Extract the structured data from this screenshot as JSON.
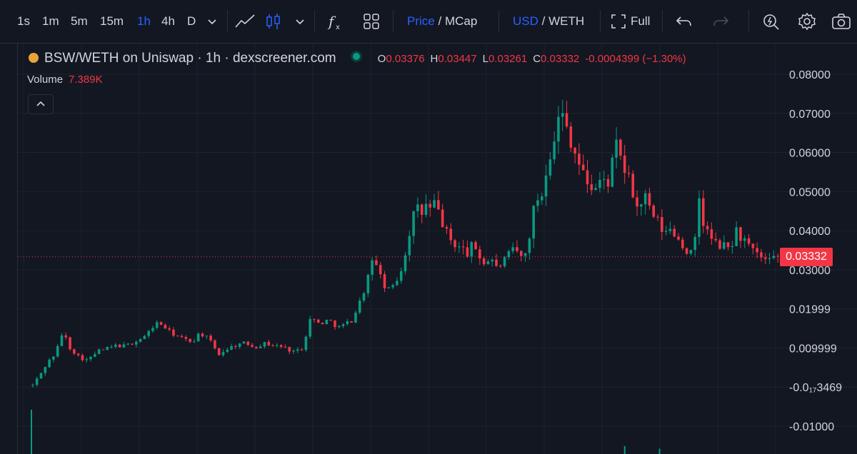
{
  "toolbar": {
    "intervals": [
      "1s",
      "1m",
      "5m",
      "15m",
      "1h",
      "4h",
      "D"
    ],
    "active_interval": "1h",
    "price_label": "Price",
    "price_sep": "/",
    "mcap_label": "MCap",
    "usd_label": "USD",
    "currency_sep": "/",
    "weth_label": "WETH",
    "full_label": "Full",
    "icons": [
      "chevron-down-icon",
      "line-chart-icon",
      "candlestick-icon",
      "chevron-down-icon",
      "function-icon",
      "layout-grid-icon",
      "fullscreen-icon",
      "undo-icon",
      "redo-icon",
      "alert-icon",
      "gear-icon",
      "camera-icon"
    ]
  },
  "legend": {
    "title": "BSW/WETH on Uniswap · 1h · dexscreener.com",
    "open_key": "O",
    "open": "0.03376",
    "high_key": "H",
    "high": "0.03447",
    "low_key": "L",
    "low": "0.03261",
    "close_key": "C",
    "close": "0.03332",
    "change": "-0.0004399 (−1.30%)"
  },
  "volume": {
    "label": "Volume",
    "value": "7.389K"
  },
  "price_tag": "0.03332",
  "colors": {
    "up": "#089981",
    "down": "#f23645",
    "background": "#131722",
    "grid": "#1e222d",
    "accent": "#2962ff"
  },
  "chart_data": {
    "type": "candlestick",
    "title": "BSW/WETH on Uniswap · 1h · dexscreener.com",
    "y_axis_labels": [
      "0.08000",
      "0.07000",
      "0.06000",
      "0.05000",
      "0.04000",
      "0.03000",
      "0.01999",
      "0.009999",
      "-0.0₁₇3469",
      "-0.01000"
    ],
    "y_axis_values": [
      0.08,
      0.07,
      0.06,
      0.05,
      0.04,
      0.03,
      0.02,
      0.01,
      0.0,
      -0.01
    ],
    "ylim": [
      -0.012,
      0.0826
    ],
    "last_price": 0.03332,
    "grid": true,
    "close_path": [
      [
        0,
        0.0005
      ],
      [
        3,
        0.003
      ],
      [
        6,
        0.006
      ],
      [
        10,
        0.0088
      ],
      [
        13,
        0.0143
      ],
      [
        16,
        0.0101
      ],
      [
        20,
        0.0077
      ],
      [
        24,
        0.0068
      ],
      [
        28,
        0.0092
      ],
      [
        32,
        0.0098
      ],
      [
        36,
        0.0106
      ],
      [
        40,
        0.0105
      ],
      [
        45,
        0.0118
      ],
      [
        49,
        0.0132
      ],
      [
        53,
        0.0164
      ],
      [
        56,
        0.0159
      ],
      [
        59,
        0.0142
      ],
      [
        62,
        0.0131
      ],
      [
        66,
        0.0121
      ],
      [
        69,
        0.0115
      ],
      [
        72,
        0.0138
      ],
      [
        75,
        0.0128
      ],
      [
        78,
        0.0108
      ],
      [
        80,
        0.0082
      ],
      [
        84,
        0.0098
      ],
      [
        88,
        0.0108
      ],
      [
        92,
        0.0113
      ],
      [
        96,
        0.0102
      ],
      [
        100,
        0.0112
      ],
      [
        104,
        0.0107
      ],
      [
        108,
        0.0103
      ],
      [
        112,
        0.0092
      ],
      [
        116,
        0.0094
      ],
      [
        118,
        0.0132
      ],
      [
        120,
        0.0176
      ],
      [
        124,
        0.0162
      ],
      [
        128,
        0.0172
      ],
      [
        132,
        0.0152
      ],
      [
        135,
        0.0161
      ],
      [
        138,
        0.0172
      ],
      [
        141,
        0.0212
      ],
      [
        144,
        0.0262
      ],
      [
        146,
        0.0308
      ],
      [
        148,
        0.0332
      ],
      [
        151,
        0.0262
      ],
      [
        154,
        0.0246
      ],
      [
        157,
        0.0272
      ],
      [
        160,
        0.0312
      ],
      [
        162,
        0.0375
      ],
      [
        164,
        0.0432
      ],
      [
        166,
        0.0458
      ],
      [
        168,
        0.0442
      ],
      [
        170,
        0.0465
      ],
      [
        172,
        0.0452
      ],
      [
        174,
        0.0472
      ],
      [
        176,
        0.0438
      ],
      [
        178,
        0.0405
      ],
      [
        180,
        0.0378
      ],
      [
        182,
        0.0368
      ],
      [
        184,
        0.0358
      ],
      [
        186,
        0.0352
      ],
      [
        188,
        0.0342
      ],
      [
        190,
        0.0362
      ],
      [
        192,
        0.0352
      ],
      [
        194,
        0.0322
      ],
      [
        196,
        0.0314
      ],
      [
        198,
        0.0338
      ],
      [
        200,
        0.0302
      ],
      [
        203,
        0.0318
      ],
      [
        206,
        0.0338
      ],
      [
        208,
        0.0352
      ],
      [
        210,
        0.0342
      ],
      [
        212,
        0.0322
      ],
      [
        214,
        0.0365
      ],
      [
        216,
        0.0442
      ],
      [
        218,
        0.0482
      ],
      [
        220,
        0.0492
      ],
      [
        222,
        0.0562
      ],
      [
        224,
        0.0612
      ],
      [
        226,
        0.0655
      ],
      [
        228,
        0.0705
      ],
      [
        230,
        0.0682
      ],
      [
        232,
        0.0642
      ],
      [
        234,
        0.0608
      ],
      [
        236,
        0.0572
      ],
      [
        238,
        0.0542
      ],
      [
        240,
        0.0522
      ],
      [
        242,
        0.0508
      ],
      [
        244,
        0.0512
      ],
      [
        246,
        0.0535
      ],
      [
        248,
        0.0512
      ],
      [
        250,
        0.0558
      ],
      [
        252,
        0.0618
      ],
      [
        254,
        0.0585
      ],
      [
        256,
        0.0552
      ],
      [
        258,
        0.0522
      ],
      [
        260,
        0.0482
      ],
      [
        262,
        0.0442
      ],
      [
        264,
        0.0502
      ],
      [
        266,
        0.0458
      ],
      [
        268,
        0.0438
      ],
      [
        270,
        0.0422
      ],
      [
        272,
        0.0402
      ],
      [
        274,
        0.0392
      ],
      [
        276,
        0.0408
      ],
      [
        278,
        0.0385
      ],
      [
        280,
        0.0372
      ],
      [
        282,
        0.0352
      ],
      [
        284,
        0.0338
      ],
      [
        286,
        0.0358
      ],
      [
        288,
        0.0485
      ],
      [
        290,
        0.0412
      ],
      [
        292,
        0.0392
      ],
      [
        294,
        0.0372
      ],
      [
        296,
        0.0362
      ],
      [
        298,
        0.0362
      ],
      [
        300,
        0.0355
      ],
      [
        302,
        0.0362
      ],
      [
        304,
        0.0402
      ],
      [
        306,
        0.0382
      ],
      [
        308,
        0.0372
      ],
      [
        310,
        0.0352
      ],
      [
        312,
        0.0342
      ],
      [
        314,
        0.0335
      ],
      [
        316,
        0.0325
      ],
      [
        318,
        0.0318
      ],
      [
        320,
        0.0325
      ],
      [
        322,
        0.0332
      ]
    ],
    "volume_bars": [
      {
        "x": 0,
        "value": 1.0
      },
      {
        "x": 255,
        "value": 0.18
      },
      {
        "x": 270,
        "value": 0.12
      }
    ]
  }
}
